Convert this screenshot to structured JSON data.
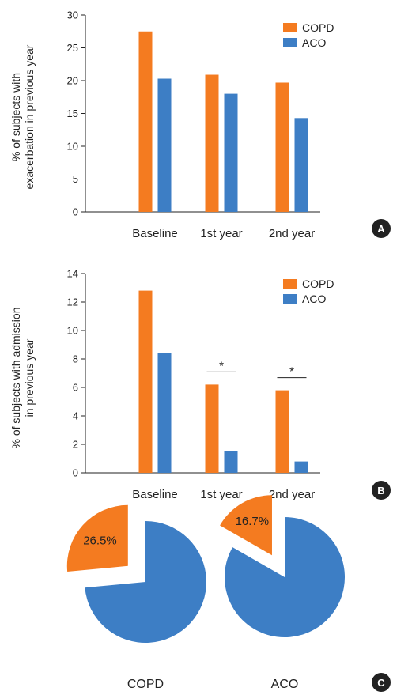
{
  "colors": {
    "copd": "#f47b20",
    "aco": "#3d7ec5",
    "axis": "#222222"
  },
  "chart_data": [
    {
      "type": "bar",
      "panel": "A",
      "ylabel_lines": [
        "% of subjects with",
        "exacerbation in previous year"
      ],
      "categories": [
        "Baseline",
        "1st year",
        "2nd year"
      ],
      "yticks": [
        0,
        5,
        10,
        15,
        20,
        25,
        30
      ],
      "ylim": [
        0,
        30
      ],
      "legend_position": "top-right",
      "series": [
        {
          "name": "COPD",
          "values": [
            27.5,
            20.9,
            19.7
          ]
        },
        {
          "name": "ACO",
          "values": [
            20.3,
            18.0,
            14.3
          ]
        }
      ],
      "annotations": []
    },
    {
      "type": "bar",
      "panel": "B",
      "ylabel_lines": [
        "% of subjects with admission",
        "in previous year"
      ],
      "categories": [
        "Baseline",
        "1st year",
        "2nd year"
      ],
      "yticks": [
        0,
        2,
        4,
        6,
        8,
        10,
        12,
        14
      ],
      "ylim": [
        0,
        14
      ],
      "legend_position": "top-right",
      "series": [
        {
          "name": "COPD",
          "values": [
            12.8,
            6.2,
            5.8
          ]
        },
        {
          "name": "ACO",
          "values": [
            8.4,
            1.5,
            0.8
          ]
        }
      ],
      "annotations": [
        {
          "category_index": 1,
          "text": "*"
        },
        {
          "category_index": 2,
          "text": "*"
        }
      ]
    },
    {
      "type": "pie",
      "panel": "C",
      "pies": [
        {
          "name": "COPD",
          "highlight_fraction": 0.265,
          "highlight_label": "26.5%"
        },
        {
          "name": "ACO",
          "highlight_fraction": 0.167,
          "highlight_label": "16.7%"
        }
      ]
    }
  ]
}
